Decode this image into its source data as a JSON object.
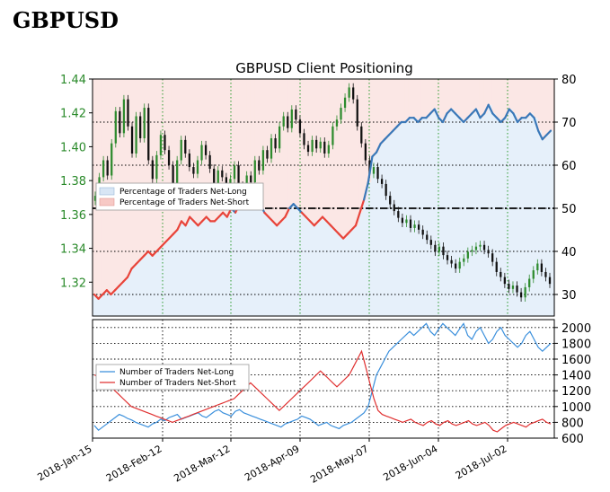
{
  "page": {
    "heading": "GBPUSD"
  },
  "colors": {
    "price_up": "#2e8b2e",
    "price_down": "#111111",
    "net_long": "#3a78b8",
    "net_short": "#e8443a",
    "long_fill": "#e6f0fa",
    "short_fill": "#fbe7e5",
    "left_axis_text": "#2a8a2a",
    "grid_green": "#2a9a2a"
  },
  "chart_data": [
    {
      "type": "line",
      "title": "GBPUSD Client Positioning",
      "x_tick_labels": [
        "2018-Jan-15",
        "2018-Feb-12",
        "2018-Mar-12",
        "2018-Apr-09",
        "2018-May-07",
        "2018-Jun-04",
        "2018-Jul-02"
      ],
      "left_axis": {
        "ticks": [
          "1.32",
          "1.34",
          "1.36",
          "1.38",
          "1.40",
          "1.42",
          "1.44"
        ],
        "ylim": [
          1.3,
          1.44
        ]
      },
      "right_axis": {
        "ticks": [
          "30",
          "40",
          "50",
          "60",
          "70",
          "80"
        ],
        "ylim": [
          25,
          80
        ]
      },
      "reference_line": 50,
      "legend": {
        "placement": "middle-left",
        "entries": [
          "Percentage of Traders Net-Long",
          "Percentage of Traders Net-Short"
        ]
      },
      "price_candles": [
        1.371,
        1.382,
        1.392,
        1.383,
        1.402,
        1.421,
        1.408,
        1.428,
        1.412,
        1.396,
        1.418,
        1.405,
        1.423,
        1.392,
        1.381,
        1.395,
        1.407,
        1.398,
        1.389,
        1.378,
        1.392,
        1.404,
        1.396,
        1.388,
        1.384,
        1.392,
        1.401,
        1.395,
        1.387,
        1.378,
        1.386,
        1.382,
        1.374,
        1.381,
        1.389,
        1.377,
        1.371,
        1.383,
        1.379,
        1.392,
        1.386,
        1.398,
        1.393,
        1.405,
        1.399,
        1.412,
        1.418,
        1.411,
        1.422,
        1.416,
        1.408,
        1.401,
        1.397,
        1.404,
        1.399,
        1.403,
        1.396,
        1.401,
        1.412,
        1.416,
        1.423,
        1.429,
        1.435,
        1.428,
        1.412,
        1.402,
        1.392,
        1.384,
        1.388,
        1.381,
        1.378,
        1.371,
        1.366,
        1.362,
        1.358,
        1.355,
        1.357,
        1.352,
        1.354,
        1.351,
        1.348,
        1.345,
        1.342,
        1.338,
        1.341,
        1.336,
        1.333,
        1.331,
        1.328,
        1.332,
        1.334,
        1.338,
        1.339,
        1.341,
        1.342,
        1.339,
        1.337,
        1.332,
        1.326,
        1.323,
        1.319,
        1.316,
        1.318,
        1.314,
        1.311,
        1.317,
        1.322,
        1.327,
        1.331,
        1.326,
        1.323,
        1.319
      ],
      "net_long_pct": [
        30,
        29,
        30,
        31,
        30,
        31,
        32,
        33,
        34,
        36,
        37,
        38,
        39,
        40,
        39,
        40,
        41,
        42,
        43,
        44,
        45,
        47,
        46,
        48,
        47,
        46,
        47,
        48,
        47,
        47,
        48,
        49,
        48,
        50,
        49,
        51,
        50,
        52,
        53,
        52,
        51,
        49,
        48,
        47,
        46,
        47,
        48,
        50,
        51,
        50,
        49,
        48,
        47,
        46,
        47,
        48,
        47,
        46,
        45,
        44,
        43,
        44,
        45,
        46,
        49,
        52,
        56,
        62,
        63,
        65,
        66,
        67,
        68,
        69,
        70,
        70,
        71,
        71,
        70,
        71,
        71,
        72,
        73,
        71,
        70,
        72,
        73,
        72,
        71,
        70,
        71,
        72,
        73,
        71,
        72,
        74,
        72,
        71,
        70,
        71,
        73,
        72,
        70,
        71,
        71,
        72,
        71,
        68,
        66,
        67,
        68
      ],
      "net_short_pct": [
        70,
        71,
        70,
        69,
        70,
        69,
        68,
        67,
        66,
        64,
        63,
        62,
        61,
        60,
        61,
        60,
        59,
        58,
        57,
        56,
        55,
        53,
        54,
        52,
        53,
        54,
        53,
        52,
        53,
        53,
        52,
        51,
        52,
        50,
        51,
        49,
        50,
        48,
        47,
        48,
        49,
        51,
        52,
        53,
        54,
        53,
        52,
        50,
        49,
        50,
        51,
        52,
        53,
        54,
        53,
        52,
        53,
        54,
        55,
        56,
        57,
        56,
        55,
        54,
        51,
        48,
        44,
        38,
        37,
        35,
        34,
        33,
        32,
        31,
        30,
        30,
        29,
        29,
        30,
        29,
        29,
        28,
        27,
        29,
        30,
        28,
        27,
        28,
        29,
        30,
        29,
        28,
        27,
        29,
        28,
        26,
        28,
        29,
        30,
        29,
        27,
        28,
        30,
        29,
        29,
        28,
        29,
        32,
        34,
        33,
        32
      ]
    },
    {
      "type": "line",
      "right_axis": {
        "ticks": [
          "600",
          "800",
          "1000",
          "1200",
          "1400",
          "1600",
          "1800",
          "2000"
        ],
        "ylim": [
          600,
          2100
        ]
      },
      "legend": {
        "placement": "middle-left",
        "entries": [
          "Number of Traders Net-Long",
          "Number of Traders Net-Short"
        ]
      },
      "series": [
        {
          "name": "Number of Traders Net-Long",
          "values": [
            760,
            700,
            740,
            780,
            820,
            860,
            900,
            880,
            850,
            830,
            800,
            780,
            760,
            740,
            780,
            800,
            840,
            820,
            860,
            880,
            900,
            840,
            860,
            880,
            900,
            920,
            880,
            860,
            900,
            940,
            960,
            920,
            900,
            880,
            940,
            960,
            920,
            900,
            880,
            860,
            840,
            820,
            800,
            780,
            760,
            740,
            780,
            800,
            820,
            840,
            880,
            860,
            840,
            800,
            760,
            780,
            800,
            760,
            740,
            720,
            760,
            780,
            800,
            840,
            880,
            920,
            1000,
            1200,
            1400,
            1500,
            1600,
            1700,
            1750,
            1800,
            1850,
            1900,
            1950,
            1900,
            1950,
            2000,
            2050,
            1950,
            1900,
            1980,
            2050,
            2000,
            1950,
            1900,
            1980,
            2050,
            1900,
            1850,
            1950,
            2000,
            1900,
            1800,
            1850,
            1950,
            2000,
            1900,
            1850,
            1800,
            1750,
            1800,
            1900,
            1950,
            1850,
            1750,
            1700,
            1750,
            1800
          ]
        },
        {
          "name": "Number of Traders Net-Short",
          "values": [
            1400,
            1380,
            1350,
            1300,
            1250,
            1200,
            1150,
            1100,
            1050,
            1000,
            980,
            960,
            940,
            920,
            900,
            880,
            860,
            840,
            820,
            800,
            820,
            840,
            860,
            880,
            900,
            920,
            940,
            960,
            980,
            1000,
            1020,
            1040,
            1060,
            1080,
            1100,
            1150,
            1200,
            1250,
            1300,
            1250,
            1200,
            1150,
            1100,
            1050,
            1000,
            950,
            1000,
            1050,
            1100,
            1150,
            1200,
            1250,
            1300,
            1350,
            1400,
            1450,
            1400,
            1350,
            1300,
            1250,
            1300,
            1350,
            1400,
            1500,
            1600,
            1700,
            1500,
            1300,
            1100,
            950,
            900,
            880,
            860,
            840,
            820,
            800,
            820,
            840,
            800,
            780,
            760,
            800,
            820,
            780,
            760,
            800,
            820,
            780,
            760,
            780,
            800,
            820,
            780,
            760,
            780,
            800,
            760,
            700,
            680,
            720,
            760,
            780,
            800,
            780,
            760,
            740,
            780,
            800,
            820,
            840,
            800,
            780
          ]
        }
      ]
    }
  ]
}
